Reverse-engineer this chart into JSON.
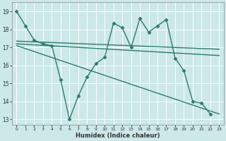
{
  "xlabel": "Humidex (Indice chaleur)",
  "ylabel": "",
  "bg_color": "#cce8e8",
  "grid_color": "#ffffff",
  "line_color": "#2d7a6e",
  "xlim": [
    -0.5,
    23.5
  ],
  "ylim": [
    12.7,
    19.5
  ],
  "xticks": [
    0,
    1,
    2,
    3,
    4,
    5,
    6,
    7,
    8,
    9,
    10,
    11,
    12,
    13,
    14,
    15,
    16,
    17,
    18,
    19,
    20,
    21,
    22,
    23
  ],
  "yticks": [
    13,
    14,
    15,
    16,
    17,
    18,
    19
  ],
  "series": [
    {
      "x": [
        0,
        1,
        2,
        3,
        4,
        5,
        6,
        7,
        8,
        9,
        10,
        11,
        12,
        13,
        14,
        15,
        16,
        17,
        18,
        19,
        20,
        21,
        22
      ],
      "y": [
        19.0,
        18.2,
        17.4,
        17.2,
        17.1,
        15.2,
        13.0,
        14.3,
        15.35,
        16.1,
        16.45,
        18.35,
        18.1,
        17.0,
        18.6,
        17.85,
        18.2,
        18.55,
        16.4,
        15.7,
        14.0,
        13.9,
        13.3
      ],
      "marker": "D",
      "markersize": 2.5,
      "linewidth": 1.0,
      "linestyle": "-"
    },
    {
      "x": [
        0,
        23
      ],
      "y": [
        17.35,
        16.9
      ],
      "marker": null,
      "markersize": 0,
      "linewidth": 1.0,
      "linestyle": "-"
    },
    {
      "x": [
        0,
        23
      ],
      "y": [
        17.2,
        16.55
      ],
      "marker": null,
      "markersize": 0,
      "linewidth": 1.0,
      "linestyle": "-"
    },
    {
      "x": [
        0,
        23
      ],
      "y": [
        17.1,
        13.3
      ],
      "marker": null,
      "markersize": 0,
      "linewidth": 1.0,
      "linestyle": "-"
    }
  ]
}
